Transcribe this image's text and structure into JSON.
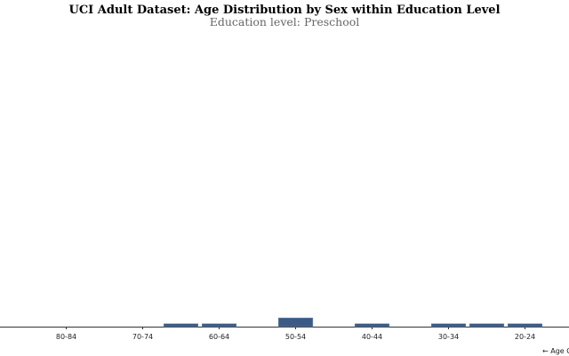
{
  "chart_data": {
    "type": "bar",
    "title": "UCI Adult Dataset: Age Distribution by Sex within Education Level",
    "subtitle": "Education level: Preschool",
    "x_label": "← Age Group",
    "categories": [
      null,
      "80-84",
      null,
      "70-74",
      null,
      "60-64",
      null,
      "50-54",
      null,
      "40-44",
      null,
      "30-34",
      null,
      "20-24",
      null
    ],
    "values": [
      0,
      0,
      0,
      0,
      1,
      1,
      0,
      3,
      0,
      1,
      0,
      1,
      1,
      1,
      0
    ],
    "color": "#3b5b85",
    "ylim": [
      0,
      100
    ]
  }
}
